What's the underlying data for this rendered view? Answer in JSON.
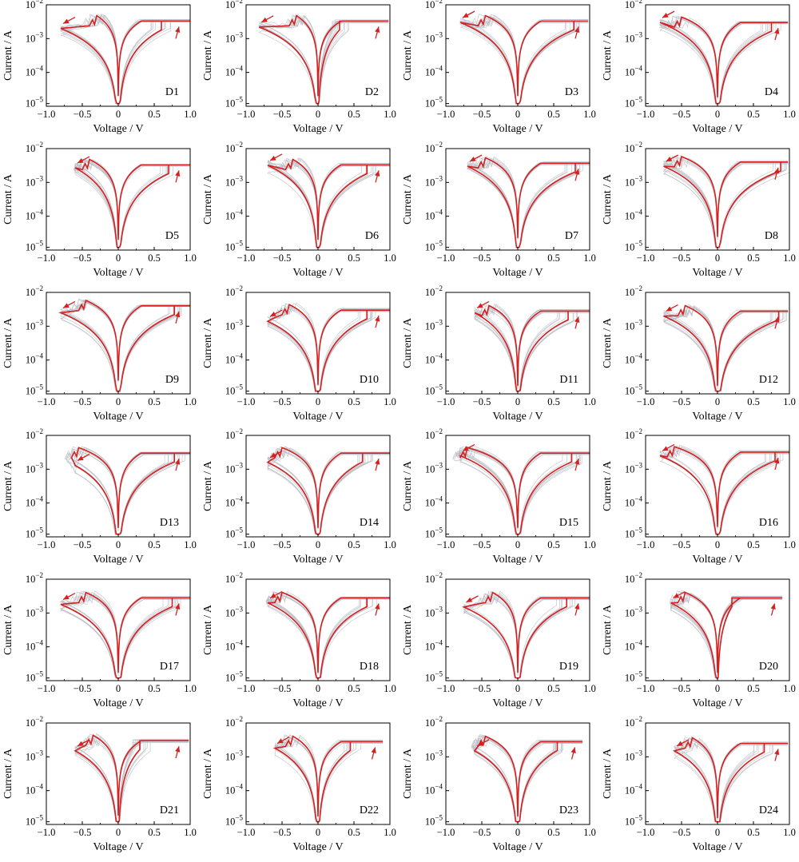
{
  "labels": {
    "x_axis": "Voltage / V",
    "y_axis": "Current / A"
  },
  "chart_data": {
    "type": "line",
    "layout": "6x4 grid of small multiples",
    "xlabel": "Voltage / V",
    "ylabel": "Current / A",
    "xlim": [
      -1.0,
      1.0
    ],
    "ylim": [
      1e-05,
      0.01
    ],
    "yscale": "log",
    "x_ticks": [
      "−1.0",
      "−0.5",
      "0",
      "0.5",
      "1.0"
    ],
    "y_ticks": [
      {
        "base": "10",
        "exp": "−5"
      },
      {
        "base": "10",
        "exp": "−4"
      },
      {
        "base": "10",
        "exp": "−3"
      },
      {
        "base": "10",
        "exp": "−2"
      }
    ],
    "colors": {
      "highlight": "#d42020",
      "background_cycles": "#b9bcc4",
      "arrow": "#d42020"
    },
    "panels": [
      {
        "label": "D1",
        "v_min": -0.8,
        "v_max": 1.0,
        "compliance": 0.0033,
        "set_v": 0.6,
        "reset_v": -0.3,
        "i_neg": 0.002
      },
      {
        "label": "D2",
        "v_min": -0.82,
        "v_max": 0.98,
        "compliance": 0.0033,
        "set_v": 0.3,
        "reset_v": -0.3,
        "i_neg": 0.0022
      },
      {
        "label": "D3",
        "v_min": -0.8,
        "v_max": 0.98,
        "compliance": 0.0033,
        "set_v": 0.78,
        "reset_v": -0.45,
        "i_neg": 0.003
      },
      {
        "label": "D4",
        "v_min": -0.8,
        "v_max": 0.98,
        "compliance": 0.003,
        "set_v": 0.75,
        "reset_v": -0.5,
        "i_neg": 0.003
      },
      {
        "label": "D5",
        "v_min": -0.6,
        "v_max": 1.0,
        "compliance": 0.0033,
        "set_v": 0.7,
        "reset_v": -0.4,
        "i_neg": 0.0027
      },
      {
        "label": "D6",
        "v_min": -0.7,
        "v_max": 1.0,
        "compliance": 0.0033,
        "set_v": 0.68,
        "reset_v": -0.35,
        "i_neg": 0.0032
      },
      {
        "label": "D7",
        "v_min": -0.7,
        "v_max": 1.0,
        "compliance": 0.0037,
        "set_v": 0.8,
        "reset_v": -0.45,
        "i_neg": 0.003
      },
      {
        "label": "D8",
        "v_min": -0.75,
        "v_max": 0.98,
        "compliance": 0.004,
        "set_v": 0.88,
        "reset_v": -0.5,
        "i_neg": 0.003
      },
      {
        "label": "D9",
        "v_min": -0.8,
        "v_max": 1.0,
        "compliance": 0.004,
        "set_v": 0.78,
        "reset_v": -0.45,
        "i_neg": 0.0025
      },
      {
        "label": "D10",
        "v_min": -0.7,
        "v_max": 1.0,
        "compliance": 0.003,
        "set_v": 0.68,
        "reset_v": -0.4,
        "i_neg": 0.0014
      },
      {
        "label": "D11",
        "v_min": -0.6,
        "v_max": 1.0,
        "compliance": 0.0028,
        "set_v": 0.7,
        "reset_v": -0.4,
        "i_neg": 0.0025
      },
      {
        "label": "D12",
        "v_min": -0.75,
        "v_max": 0.98,
        "compliance": 0.0028,
        "set_v": 0.85,
        "reset_v": -0.45,
        "i_neg": 0.002
      },
      {
        "label": "D13",
        "v_min": -0.6,
        "v_max": 1.0,
        "compliance": 0.003,
        "set_v": 0.78,
        "reset_v": -0.55,
        "i_neg": 0.0013
      },
      {
        "label": "D14",
        "v_min": -0.7,
        "v_max": 1.0,
        "compliance": 0.003,
        "set_v": 0.62,
        "reset_v": -0.5,
        "i_neg": 0.0016
      },
      {
        "label": "D15",
        "v_min": -0.8,
        "v_max": 1.0,
        "compliance": 0.003,
        "set_v": 0.75,
        "reset_v": -0.7,
        "i_neg": 0.0025
      },
      {
        "label": "D16",
        "v_min": -0.8,
        "v_max": 1.0,
        "compliance": 0.0032,
        "set_v": 0.8,
        "reset_v": -0.6,
        "i_neg": 0.0025
      },
      {
        "label": "D17",
        "v_min": -0.8,
        "v_max": 1.0,
        "compliance": 0.0028,
        "set_v": 0.75,
        "reset_v": -0.45,
        "i_neg": 0.0018
      },
      {
        "label": "D18",
        "v_min": -0.7,
        "v_max": 1.0,
        "compliance": 0.0028,
        "set_v": 0.68,
        "reset_v": -0.5,
        "i_neg": 0.002
      },
      {
        "label": "D19",
        "v_min": -0.75,
        "v_max": 1.0,
        "compliance": 0.0028,
        "set_v": 0.68,
        "reset_v": -0.35,
        "i_neg": 0.0015
      },
      {
        "label": "D20",
        "v_min": -0.65,
        "v_max": 0.9,
        "compliance": 0.0028,
        "set_v": 0.0,
        "reset_v": -0.45,
        "i_neg": 0.002
      },
      {
        "label": "D21",
        "v_min": -0.6,
        "v_max": 0.98,
        "compliance": 0.003,
        "set_v": 0.3,
        "reset_v": -0.35,
        "i_neg": 0.0015
      },
      {
        "label": "D22",
        "v_min": -0.6,
        "v_max": 0.9,
        "compliance": 0.0028,
        "set_v": 0.45,
        "reset_v": -0.35,
        "i_neg": 0.0018
      },
      {
        "label": "D23",
        "v_min": -0.6,
        "v_max": 0.9,
        "compliance": 0.0028,
        "set_v": 0.55,
        "reset_v": -0.45,
        "i_neg": 0.0015
      },
      {
        "label": "D24",
        "v_min": -0.6,
        "v_max": 0.98,
        "compliance": 0.0025,
        "set_v": 0.65,
        "reset_v": -0.35,
        "i_neg": 0.0015
      }
    ]
  }
}
